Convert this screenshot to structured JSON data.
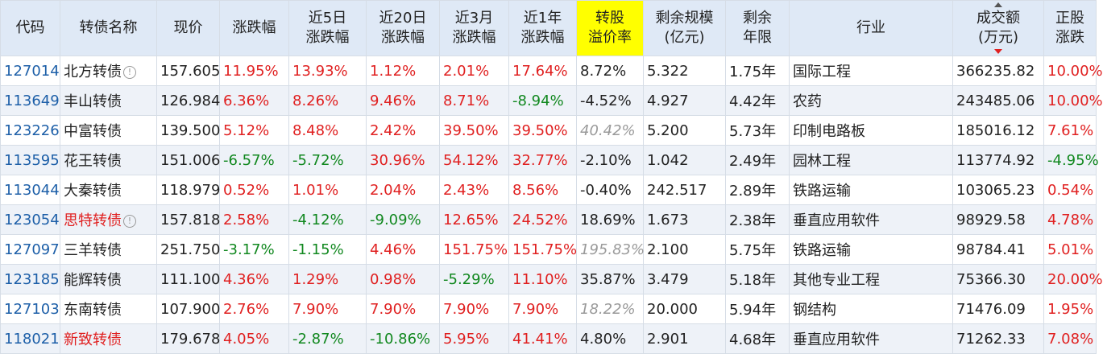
{
  "colors": {
    "header_bg": "#dfe9f6",
    "highlight": "#ffff00",
    "up": "#e02020",
    "down": "#11881f",
    "code": "#1d5fa8"
  },
  "headers": {
    "code": "代码",
    "name": "转债名称",
    "price": "现价",
    "chg": "涨跌幅",
    "chg5_l1": "近5日",
    "chg5_l2": "涨跌幅",
    "chg20_l1": "近20日",
    "chg20_l2": "涨跌幅",
    "chg3m_l1": "近3月",
    "chg3m_l2": "涨跌幅",
    "chg1y_l1": "近1年",
    "chg1y_l2": "涨跌幅",
    "premium_l1": "转股",
    "premium_l2": "溢价率",
    "scale_l1": "剩余规模",
    "scale_l2": "(亿元)",
    "term_l1": "剩余",
    "term_l2": "年限",
    "industry": "行业",
    "turnover_l1": "成交额",
    "turnover_l2": "(万元)",
    "stock_chg_l1": "正股",
    "stock_chg_l2": "涨跌"
  },
  "rows": [
    {
      "code": "127014",
      "name": "北方转债",
      "name_red": false,
      "info": true,
      "price": "157.605",
      "chg": "11.95%",
      "chg_s": "red",
      "chg5": "13.93%",
      "chg5_s": "red",
      "chg20": "1.12%",
      "chg20_s": "red",
      "chg3m": "2.01%",
      "chg3m_s": "red",
      "chg1y": "17.64%",
      "chg1y_s": "red",
      "premium": "8.72%",
      "premium_s": "",
      "scale": "5.322",
      "term": "1.75年",
      "industry": "国际工程",
      "turnover": "366235.82",
      "stock_chg": "10.00%",
      "stock_s": "red"
    },
    {
      "code": "113649",
      "name": "丰山转债",
      "name_red": false,
      "info": false,
      "price": "126.984",
      "chg": "6.36%",
      "chg_s": "red",
      "chg5": "8.26%",
      "chg5_s": "red",
      "chg20": "9.46%",
      "chg20_s": "red",
      "chg3m": "8.71%",
      "chg3m_s": "red",
      "chg1y": "-8.94%",
      "chg1y_s": "green",
      "premium": "-4.52%",
      "premium_s": "",
      "scale": "4.927",
      "term": "4.42年",
      "industry": "农药",
      "turnover": "243485.06",
      "stock_chg": "10.00%",
      "stock_s": "red"
    },
    {
      "code": "123226",
      "name": "中富转债",
      "name_red": false,
      "info": false,
      "price": "139.500",
      "chg": "5.12%",
      "chg_s": "red",
      "chg5": "8.48%",
      "chg5_s": "red",
      "chg20": "2.42%",
      "chg20_s": "red",
      "chg3m": "39.50%",
      "chg3m_s": "red",
      "chg1y": "39.50%",
      "chg1y_s": "red",
      "premium": "40.42%",
      "premium_s": "muted",
      "scale": "5.200",
      "term": "5.73年",
      "industry": "印制电路板",
      "turnover": "185016.12",
      "stock_chg": "7.61%",
      "stock_s": "red"
    },
    {
      "code": "113595",
      "name": "花王转债",
      "name_red": false,
      "info": false,
      "price": "151.006",
      "chg": "-6.57%",
      "chg_s": "green",
      "chg5": "-5.72%",
      "chg5_s": "green",
      "chg20": "30.96%",
      "chg20_s": "red",
      "chg3m": "54.12%",
      "chg3m_s": "red",
      "chg1y": "32.77%",
      "chg1y_s": "red",
      "premium": "-2.10%",
      "premium_s": "",
      "scale": "1.042",
      "term": "2.49年",
      "industry": "园林工程",
      "turnover": "113774.92",
      "stock_chg": "-4.95%",
      "stock_s": "green"
    },
    {
      "code": "113044",
      "name": "大秦转债",
      "name_red": false,
      "info": false,
      "price": "118.979",
      "chg": "0.52%",
      "chg_s": "red",
      "chg5": "1.01%",
      "chg5_s": "red",
      "chg20": "2.04%",
      "chg20_s": "red",
      "chg3m": "2.43%",
      "chg3m_s": "red",
      "chg1y": "8.56%",
      "chg1y_s": "red",
      "premium": "-0.40%",
      "premium_s": "",
      "scale": "242.517",
      "term": "2.89年",
      "industry": "铁路运输",
      "turnover": "103065.23",
      "stock_chg": "0.54%",
      "stock_s": "red"
    },
    {
      "code": "123054",
      "name": "思特转债",
      "name_red": true,
      "info": true,
      "price": "157.818",
      "chg": "2.58%",
      "chg_s": "red",
      "chg5": "-4.12%",
      "chg5_s": "green",
      "chg20": "-9.09%",
      "chg20_s": "green",
      "chg3m": "12.65%",
      "chg3m_s": "red",
      "chg1y": "24.52%",
      "chg1y_s": "red",
      "premium": "18.69%",
      "premium_s": "",
      "scale": "1.673",
      "term": "2.38年",
      "industry": "垂直应用软件",
      "turnover": "98929.58",
      "stock_chg": "4.78%",
      "stock_s": "red"
    },
    {
      "code": "127097",
      "name": "三羊转债",
      "name_red": false,
      "info": false,
      "price": "251.750",
      "chg": "-3.17%",
      "chg_s": "green",
      "chg5": "-1.15%",
      "chg5_s": "green",
      "chg20": "4.46%",
      "chg20_s": "red",
      "chg3m": "151.75%",
      "chg3m_s": "red",
      "chg1y": "151.75%",
      "chg1y_s": "red",
      "premium": "195.83%",
      "premium_s": "muted",
      "scale": "2.100",
      "term": "5.75年",
      "industry": "铁路运输",
      "turnover": "98784.41",
      "stock_chg": "5.01%",
      "stock_s": "red"
    },
    {
      "code": "123185",
      "name": "能辉转债",
      "name_red": false,
      "info": false,
      "price": "111.100",
      "chg": "4.36%",
      "chg_s": "red",
      "chg5": "1.29%",
      "chg5_s": "red",
      "chg20": "0.98%",
      "chg20_s": "red",
      "chg3m": "-5.29%",
      "chg3m_s": "green",
      "chg1y": "11.10%",
      "chg1y_s": "red",
      "premium": "35.87%",
      "premium_s": "",
      "scale": "3.479",
      "term": "5.18年",
      "industry": "其他专业工程",
      "turnover": "75366.30",
      "stock_chg": "20.00%",
      "stock_s": "red"
    },
    {
      "code": "127103",
      "name": "东南转债",
      "name_red": false,
      "info": false,
      "price": "107.900",
      "chg": "2.76%",
      "chg_s": "red",
      "chg5": "7.90%",
      "chg5_s": "red",
      "chg20": "7.90%",
      "chg20_s": "red",
      "chg3m": "7.90%",
      "chg3m_s": "red",
      "chg1y": "7.90%",
      "chg1y_s": "red",
      "premium": "18.22%",
      "premium_s": "muted",
      "scale": "20.000",
      "term": "5.94年",
      "industry": "钢结构",
      "turnover": "71476.09",
      "stock_chg": "1.95%",
      "stock_s": "red"
    },
    {
      "code": "118021",
      "name": "新致转债",
      "name_red": true,
      "info": false,
      "price": "179.678",
      "chg": "4.05%",
      "chg_s": "red",
      "chg5": "-2.87%",
      "chg5_s": "green",
      "chg20": "-10.86%",
      "chg20_s": "green",
      "chg3m": "5.95%",
      "chg3m_s": "red",
      "chg1y": "41.41%",
      "chg1y_s": "red",
      "premium": "4.80%",
      "premium_s": "",
      "scale": "2.901",
      "term": "4.68年",
      "industry": "垂直应用软件",
      "turnover": "71262.33",
      "stock_chg": "7.08%",
      "stock_s": "red"
    }
  ]
}
